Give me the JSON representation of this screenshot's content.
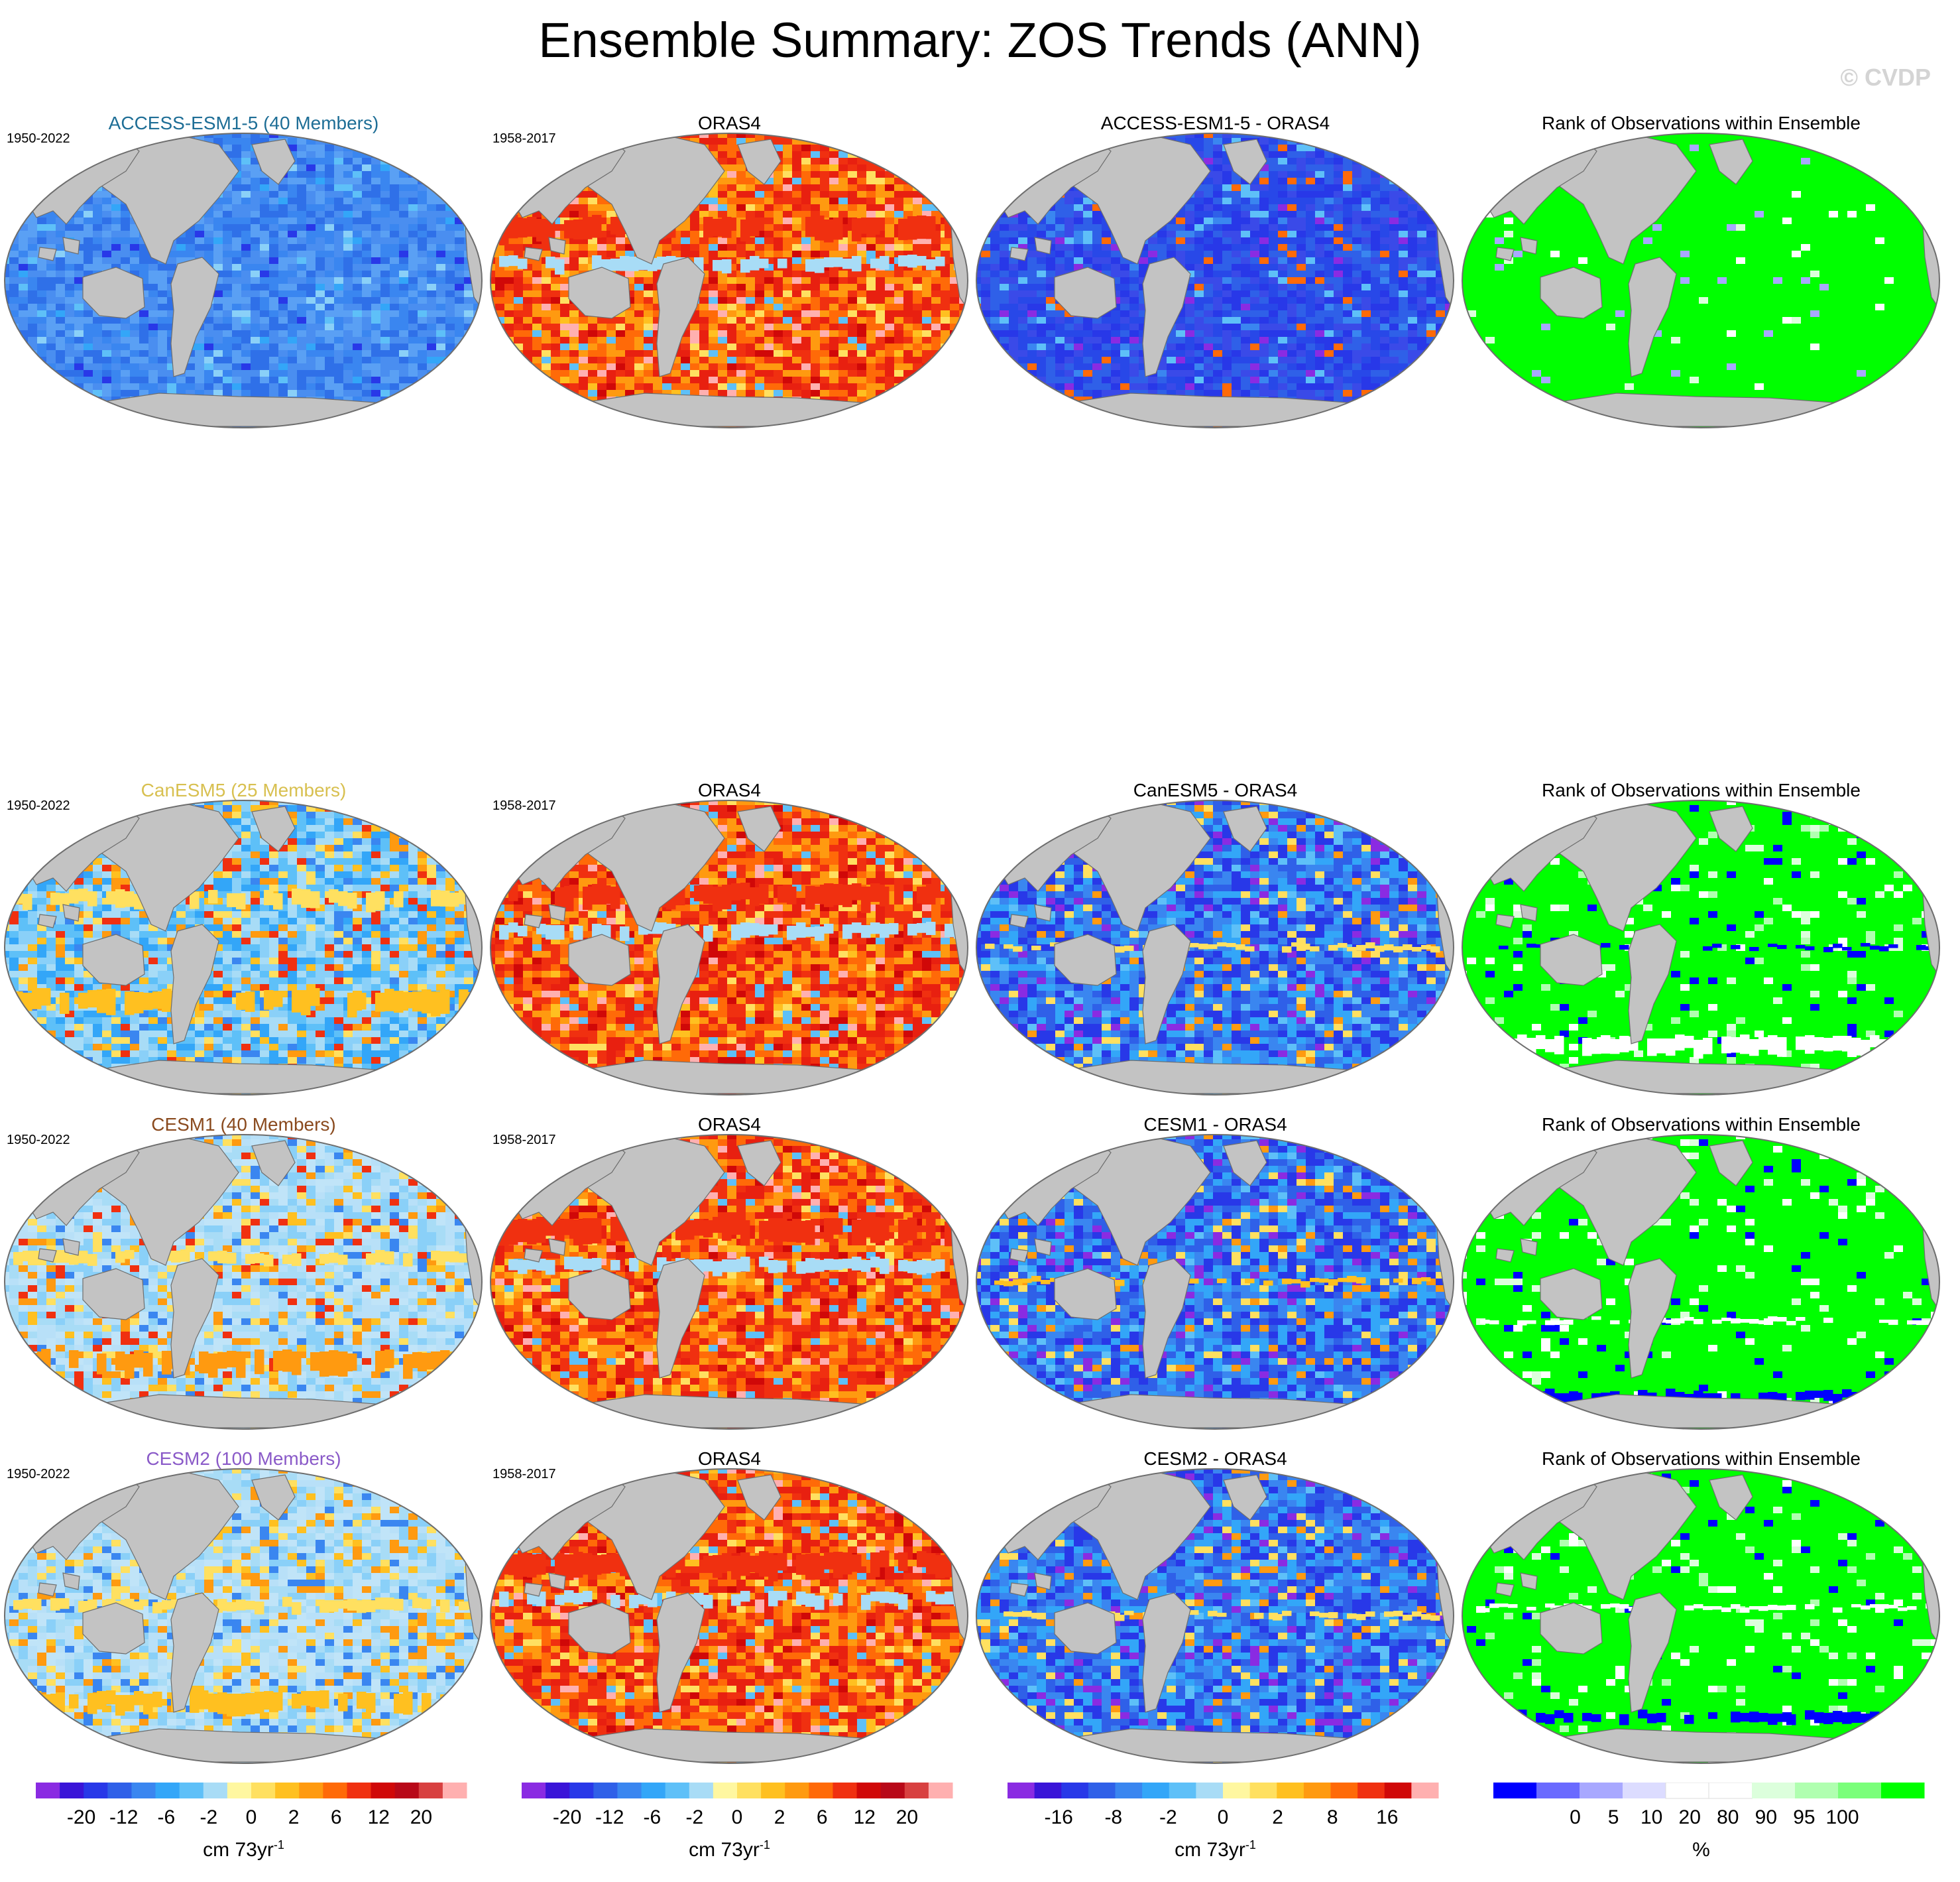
{
  "title": "Ensemble Summary: ZOS Trends (ANN)",
  "watermark": "© CVDP",
  "colors": {
    "land": "#c3c3c3",
    "ocean_gap": "#ffffff",
    "outline": "#6e6e6e"
  },
  "rows": [
    {
      "panels": [
        {
          "title": "ACCESS-ESM1-5 (40 Members)",
          "title_color": "#1e6e96",
          "years": "1950-2022",
          "field": "model-access"
        },
        {
          "title": "ORAS4",
          "title_color": "#000000",
          "years": "1958-2017",
          "field": "obs"
        },
        {
          "title": "ACCESS-ESM1-5 - ORAS4",
          "title_color": "#000000",
          "years": "",
          "field": "diff-access"
        },
        {
          "title": "Rank of Observations within Ensemble",
          "title_color": "#000000",
          "years": "",
          "field": "rank-access"
        }
      ]
    },
    {
      "panels": [
        {
          "title": "CanESM5 (25 Members)",
          "title_color": "#d8c050",
          "years": "1950-2022",
          "field": "model-canesm5"
        },
        {
          "title": "ORAS4",
          "title_color": "#000000",
          "years": "1958-2017",
          "field": "obs"
        },
        {
          "title": "CanESM5 - ORAS4",
          "title_color": "#000000",
          "years": "",
          "field": "diff-canesm5"
        },
        {
          "title": "Rank of Observations within Ensemble",
          "title_color": "#000000",
          "years": "",
          "field": "rank-canesm5"
        }
      ]
    },
    {
      "panels": [
        {
          "title": "CESM1 (40 Members)",
          "title_color": "#8a4a1e",
          "years": "1950-2022",
          "field": "model-cesm1"
        },
        {
          "title": "ORAS4",
          "title_color": "#000000",
          "years": "1958-2017",
          "field": "obs"
        },
        {
          "title": "CESM1 - ORAS4",
          "title_color": "#000000",
          "years": "",
          "field": "diff-cesm1"
        },
        {
          "title": "Rank of Observations within Ensemble",
          "title_color": "#000000",
          "years": "",
          "field": "rank-cesm1"
        }
      ]
    },
    {
      "panels": [
        {
          "title": "CESM2 (100 Members)",
          "title_color": "#8a5ac8",
          "years": "1950-2022",
          "field": "model-cesm2"
        },
        {
          "title": "ORAS4",
          "title_color": "#000000",
          "years": "1958-2017",
          "field": "obs"
        },
        {
          "title": "CESM2 - ORAS4",
          "title_color": "#000000",
          "years": "",
          "field": "diff-cesm2"
        },
        {
          "title": "Rank of Observations within Ensemble",
          "title_color": "#000000",
          "years": "",
          "field": "rank-cesm2"
        }
      ]
    }
  ],
  "colorbars": [
    {
      "colors": [
        "#8a2be2",
        "#3a14d8",
        "#2838e8",
        "#2f60e8",
        "#3a86f0",
        "#33a6f8",
        "#5ec0f8",
        "#a8dcf6",
        "#fff7a0",
        "#ffe060",
        "#ffc020",
        "#ff9a10",
        "#ff6a08",
        "#f03010",
        "#d00808",
        "#b80818",
        "#d84040",
        "#ffb0b0"
      ],
      "labels": [
        "-20",
        "-12",
        "-6",
        "-2",
        "0",
        "2",
        "6",
        "12",
        "20"
      ],
      "unit": "cm 73yr",
      "unit_sup": "-1"
    },
    {
      "colors": [
        "#8a2be2",
        "#3a14d8",
        "#2838e8",
        "#2f60e8",
        "#3a86f0",
        "#33a6f8",
        "#5ec0f8",
        "#a8dcf6",
        "#fff7a0",
        "#ffe060",
        "#ffc020",
        "#ff9a10",
        "#ff6a08",
        "#f03010",
        "#d00808",
        "#b80818",
        "#d84040",
        "#ffb0b0"
      ],
      "labels": [
        "-20",
        "-12",
        "-6",
        "-2",
        "0",
        "2",
        "6",
        "12",
        "20"
      ],
      "unit": "cm 73yr",
      "unit_sup": "-1"
    },
    {
      "colors": [
        "#8a2be2",
        "#3a14d8",
        "#2838e8",
        "#2f60e8",
        "#3a86f0",
        "#33a6f8",
        "#5ec0f8",
        "#a8dcf6",
        "#fff7a0",
        "#ffe060",
        "#ffc020",
        "#ff9a10",
        "#ff6a08",
        "#f03010",
        "#d00808",
        "#ffb0b0"
      ],
      "labels": [
        "-16",
        "-8",
        "-2",
        "0",
        "2",
        "8",
        "16"
      ],
      "unit": "cm 73yr",
      "unit_sup": "-1"
    },
    {
      "colors": [
        "#0000ff",
        "#6a6aff",
        "#a8a8ff",
        "#dcdcff",
        "#ffffff",
        "#ffffff",
        "#dcffdc",
        "#b0ffb0",
        "#7aff7a",
        "#00ff00"
      ],
      "labels": [
        "0",
        "5",
        "10",
        "20",
        "80",
        "90",
        "95",
        "100"
      ],
      "unit": "%",
      "unit_sup": ""
    }
  ]
}
